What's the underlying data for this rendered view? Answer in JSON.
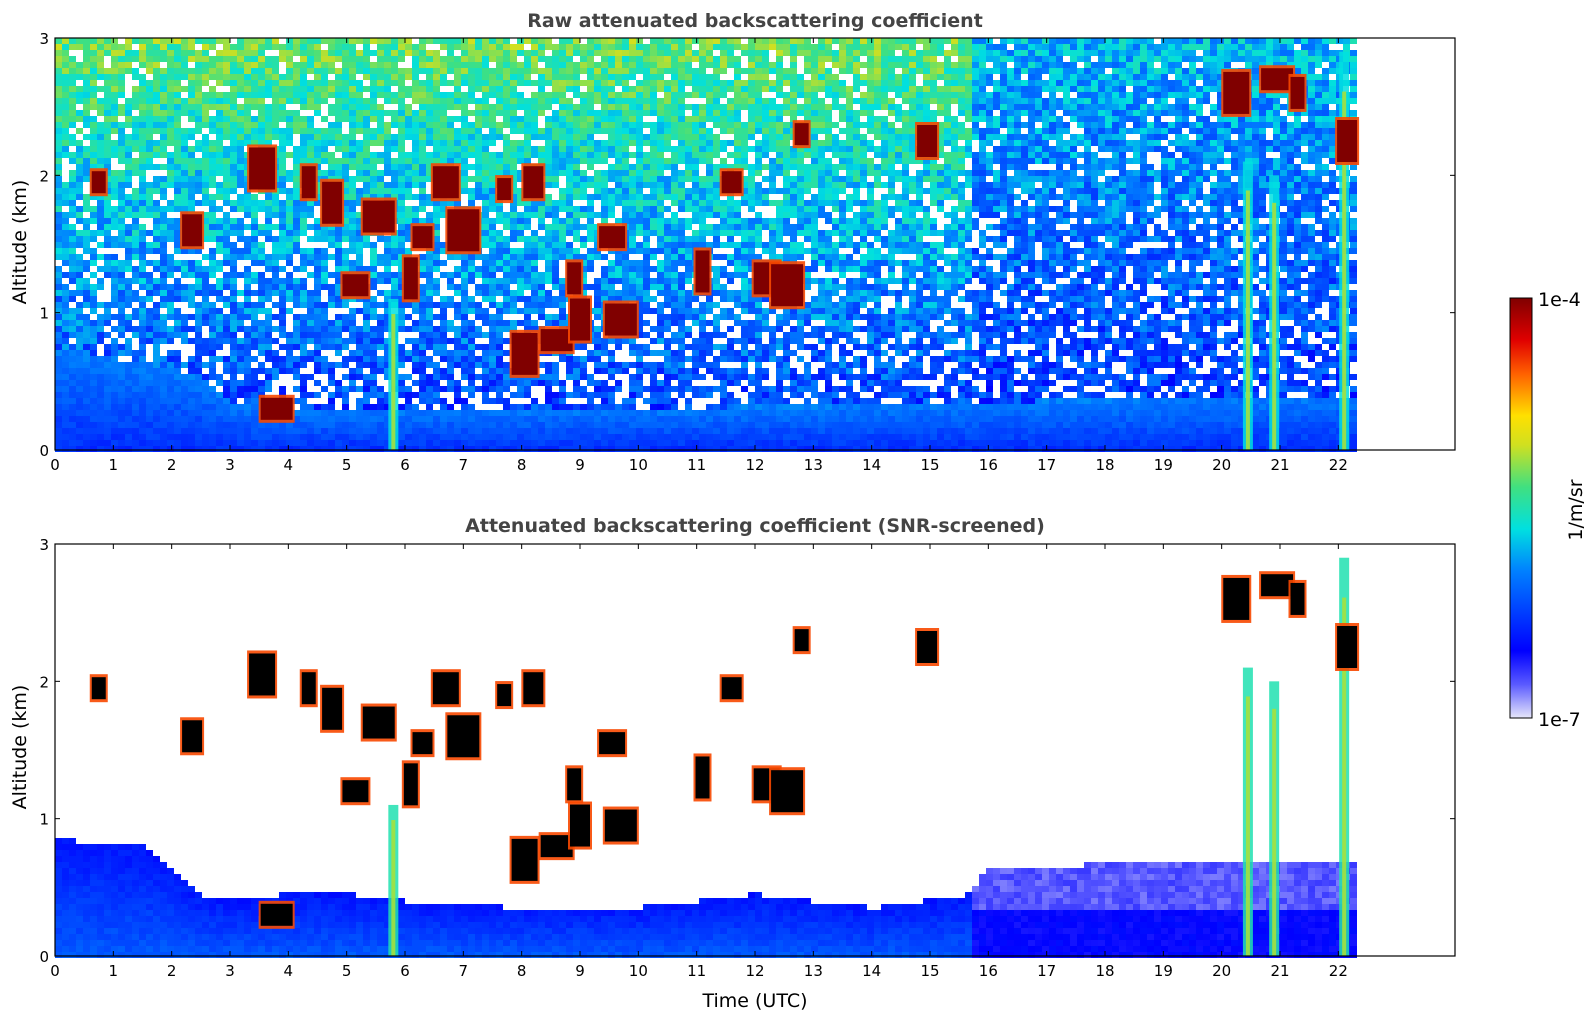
{
  "chart_data": [
    {
      "type": "heatmap",
      "title": "Raw attenuated backscattering coefficient",
      "xlabel": "",
      "ylabel": "Altitude (km)",
      "xlim": [
        0,
        24
      ],
      "ylim": [
        0,
        3
      ],
      "data_extent_x": [
        0,
        22.3
      ],
      "xticks": [
        "0",
        "1",
        "2",
        "3",
        "4",
        "5",
        "6",
        "7",
        "8",
        "9",
        "10",
        "11",
        "12",
        "13",
        "14",
        "15",
        "16",
        "17",
        "18",
        "19",
        "20",
        "21",
        "22"
      ],
      "yticks": [
        "0",
        "1",
        "2",
        "3"
      ],
      "features": {
        "boundary_layer": [
          {
            "t": 0,
            "h": 0.75
          },
          {
            "t": 2.5,
            "h": 0.55
          },
          {
            "t": 3,
            "h": 0.35
          },
          {
            "t": 4,
            "h": 0.3
          },
          {
            "t": 6,
            "h": 0.3
          },
          {
            "t": 10,
            "h": 0.3
          },
          {
            "t": 16,
            "h": 0.35
          },
          {
            "t": 22.3,
            "h": 0.4
          }
        ],
        "clouds": [
          {
            "t": 0.75,
            "h": 1.95
          },
          {
            "t": 2.35,
            "h": 1.6
          },
          {
            "t": 3.55,
            "h": 2.05
          },
          {
            "t": 3.8,
            "h": 0.3
          },
          {
            "t": 4.35,
            "h": 1.95
          },
          {
            "t": 4.75,
            "h": 1.8
          },
          {
            "t": 5.15,
            "h": 1.2
          },
          {
            "t": 5.55,
            "h": 1.7
          },
          {
            "t": 6.1,
            "h": 1.25
          },
          {
            "t": 6.3,
            "h": 1.55
          },
          {
            "t": 6.7,
            "h": 1.95
          },
          {
            "t": 7.0,
            "h": 1.6
          },
          {
            "t": 7.7,
            "h": 1.9
          },
          {
            "t": 8.2,
            "h": 1.95
          },
          {
            "t": 8.05,
            "h": 0.7
          },
          {
            "t": 8.6,
            "h": 0.8
          },
          {
            "t": 8.9,
            "h": 1.25
          },
          {
            "t": 9.0,
            "h": 0.95
          },
          {
            "t": 9.55,
            "h": 1.55
          },
          {
            "t": 9.7,
            "h": 0.95
          },
          {
            "t": 11.1,
            "h": 1.3
          },
          {
            "t": 11.6,
            "h": 1.95
          },
          {
            "t": 12.2,
            "h": 1.25
          },
          {
            "t": 12.55,
            "h": 1.2
          },
          {
            "t": 12.8,
            "h": 2.3
          },
          {
            "t": 14.95,
            "h": 2.25
          },
          {
            "t": 20.25,
            "h": 2.6
          },
          {
            "t": 20.95,
            "h": 2.7
          },
          {
            "t": 21.3,
            "h": 2.6
          },
          {
            "t": 22.15,
            "h": 2.25
          }
        ],
        "aerosol_plumes": [
          {
            "t": 5.8,
            "h_top": 1.1
          },
          {
            "t": 20.45,
            "h_top": 2.1
          },
          {
            "t": 20.9,
            "h_top": 2.0
          },
          {
            "t": 22.1,
            "h_top": 2.9
          }
        ]
      }
    },
    {
      "type": "heatmap",
      "title": "Attenuated backscattering coefficient (SNR-screened)",
      "xlabel": "Time (UTC)",
      "ylabel": "Altitude (km)",
      "xlim": [
        0,
        24
      ],
      "ylim": [
        0,
        3
      ],
      "data_extent_x": [
        0,
        22.3
      ],
      "xticks": [
        "0",
        "1",
        "2",
        "3",
        "4",
        "5",
        "6",
        "7",
        "8",
        "9",
        "10",
        "11",
        "12",
        "13",
        "14",
        "15",
        "16",
        "17",
        "18",
        "19",
        "20",
        "21",
        "22"
      ],
      "yticks": [
        "0",
        "1",
        "2",
        "3"
      ],
      "screened_boundary_layer": [
        {
          "t": 0,
          "h": 0.85
        },
        {
          "t": 1.5,
          "h": 0.8
        },
        {
          "t": 2.5,
          "h": 0.45
        },
        {
          "t": 3,
          "h": 0.4
        },
        {
          "t": 4,
          "h": 0.45
        },
        {
          "t": 5,
          "h": 0.45
        },
        {
          "t": 6,
          "h": 0.4
        },
        {
          "t": 8,
          "h": 0.35
        },
        {
          "t": 10,
          "h": 0.35
        },
        {
          "t": 12,
          "h": 0.45
        },
        {
          "t": 14,
          "h": 0.35
        },
        {
          "t": 15.7,
          "h": 0.45
        },
        {
          "t": 16,
          "h": 0.65
        },
        {
          "t": 22.3,
          "h": 0.7
        }
      ]
    }
  ],
  "colorbar": {
    "label": "1/m/sr",
    "max_label": "1e-4",
    "min_label": "1e-7",
    "colormap": "jet",
    "scale": "log",
    "range": [
      1e-07,
      0.0001
    ]
  }
}
